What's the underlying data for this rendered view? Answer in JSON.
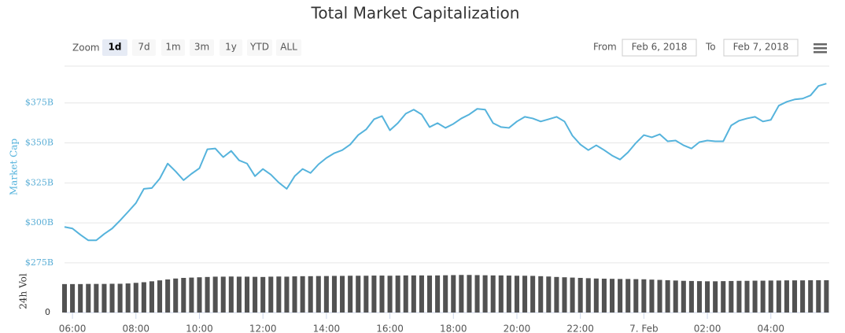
{
  "range_selector": {
    "zoom_label": "Zoom",
    "buttons": [
      "1d",
      "7d",
      "1m",
      "3m",
      "1y",
      "YTD",
      "ALL"
    ],
    "selected": "1d",
    "from_label": "From",
    "from_date": "Feb 6, 2018",
    "to_label": "To",
    "to_date": "Feb 7, 2018"
  },
  "chart_data": {
    "type": "line",
    "title": "Total Market Capitalization",
    "ylabel": "Market Cap",
    "y2label": "24h Vol",
    "x": [
      5.75,
      6,
      6.25,
      6.5,
      6.75,
      7,
      7.25,
      7.5,
      7.75,
      8,
      8.25,
      8.5,
      8.75,
      9,
      9.25,
      9.5,
      9.75,
      10,
      10.25,
      10.5,
      10.75,
      11,
      11.25,
      11.5,
      11.75,
      12,
      12.25,
      12.5,
      12.75,
      13,
      13.25,
      13.5,
      13.75,
      14,
      14.25,
      14.5,
      14.75,
      15,
      15.25,
      15.5,
      15.75,
      16,
      16.25,
      16.5,
      16.75,
      17,
      17.25,
      17.5,
      17.75,
      18,
      18.25,
      18.5,
      18.75,
      19,
      19.25,
      19.5,
      19.75,
      20,
      20.25,
      20.5,
      20.75,
      21,
      21.25,
      21.5,
      21.75,
      22,
      22.25,
      22.5,
      22.75,
      23,
      23.25,
      23.5,
      23.75,
      24,
      24.25,
      24.5,
      24.75,
      25,
      25.25,
      25.5,
      25.75,
      26,
      26.25,
      26.5,
      26.75,
      27,
      27.25,
      27.5,
      27.75,
      28,
      28.25,
      28.5,
      28.75,
      29,
      29.25,
      29.5,
      29.75
    ],
    "series": [
      {
        "color": "#55b3dc",
        "values": [
          297.5,
          296.5,
          292.6,
          289.1,
          289.1,
          293.1,
          296.5,
          301.5,
          306.9,
          312.4,
          321.3,
          321.8,
          327.7,
          337.1,
          332.2,
          326.7,
          330.7,
          334.2,
          346.0,
          346.5,
          341.1,
          345.0,
          339.1,
          337.1,
          329.2,
          333.7,
          330.2,
          325.2,
          321.3,
          329.2,
          333.7,
          331.2,
          336.6,
          340.6,
          343.6,
          345.5,
          349.0,
          354.9,
          358.4,
          364.8,
          366.8,
          357.9,
          362.4,
          368.3,
          370.8,
          367.8,
          359.9,
          362.4,
          359.4,
          361.9,
          365.3,
          367.8,
          371.3,
          370.8,
          362.4,
          359.9,
          359.4,
          363.4,
          366.3,
          365.3,
          363.4,
          364.8,
          366.3,
          363.4,
          354.5,
          349.0,
          345.5,
          348.5,
          345.5,
          342.1,
          339.6,
          344.1,
          350.0,
          354.9,
          353.5,
          355.4,
          351.0,
          351.5,
          348.5,
          346.5,
          350.5,
          351.5,
          351.0,
          351.0,
          360.9,
          363.9,
          365.3,
          366.3,
          363.4,
          364.4,
          373.3,
          375.7,
          377.2,
          377.7,
          379.7,
          385.6,
          387.1
        ]
      },
      {
        "color": "#525252",
        "type": "bar",
        "axis": "y2",
        "values": [
          18.4,
          18.4,
          18.4,
          18.5,
          18.5,
          18.5,
          18.6,
          18.6,
          18.8,
          19.2,
          19.6,
          20.2,
          20.8,
          21.4,
          22.0,
          22.4,
          22.6,
          22.8,
          23.0,
          23.2,
          23.2,
          23.3,
          23.2,
          23.2,
          23.1,
          23.0,
          23.2,
          23.3,
          23.2,
          23.4,
          23.5,
          23.5,
          23.6,
          23.6,
          23.7,
          23.7,
          23.8,
          23.8,
          23.8,
          23.9,
          23.9,
          23.8,
          23.9,
          24.0,
          24.0,
          24.0,
          23.9,
          24.0,
          24.1,
          24.2,
          24.3,
          24.3,
          24.2,
          24.1,
          24.0,
          24.0,
          23.9,
          23.8,
          23.8,
          23.7,
          23.5,
          23.3,
          23.0,
          22.8,
          22.6,
          22.4,
          22.2,
          22.0,
          21.9,
          21.8,
          21.7,
          21.7,
          21.6,
          21.5,
          21.3,
          21.1,
          20.9,
          20.7,
          20.5,
          20.4,
          20.3,
          20.2,
          20.2,
          20.3,
          20.4,
          20.5,
          20.5,
          20.6,
          20.6,
          20.7,
          20.7,
          20.8,
          20.8,
          20.8,
          20.9,
          20.9,
          20.9
        ]
      }
    ],
    "xlim": [
      5.75,
      29.84
    ],
    "xticks": [
      {
        "value": 6,
        "label": "06:00"
      },
      {
        "value": 8,
        "label": "08:00"
      },
      {
        "value": 10,
        "label": "10:00"
      },
      {
        "value": 12,
        "label": "12:00"
      },
      {
        "value": 14,
        "label": "14:00"
      },
      {
        "value": 16,
        "label": "16:00"
      },
      {
        "value": 18,
        "label": "18:00"
      },
      {
        "value": 20,
        "label": "20:00"
      },
      {
        "value": 22,
        "label": "22:00"
      },
      {
        "value": 24,
        "label": "7. Feb"
      },
      {
        "value": 26,
        "label": "02:00"
      },
      {
        "value": 28,
        "label": "04:00"
      }
    ],
    "ylim": [
      273,
      398
    ],
    "yticks": [
      {
        "value": 275,
        "label": "$275B"
      },
      {
        "value": 300,
        "label": "$300B"
      },
      {
        "value": 325,
        "label": "$325B"
      },
      {
        "value": 350,
        "label": "$350B"
      },
      {
        "value": 375,
        "label": "$375B"
      }
    ],
    "y2lim": [
      0,
      28
    ],
    "y2ticks": [
      0
    ],
    "grid": true
  }
}
